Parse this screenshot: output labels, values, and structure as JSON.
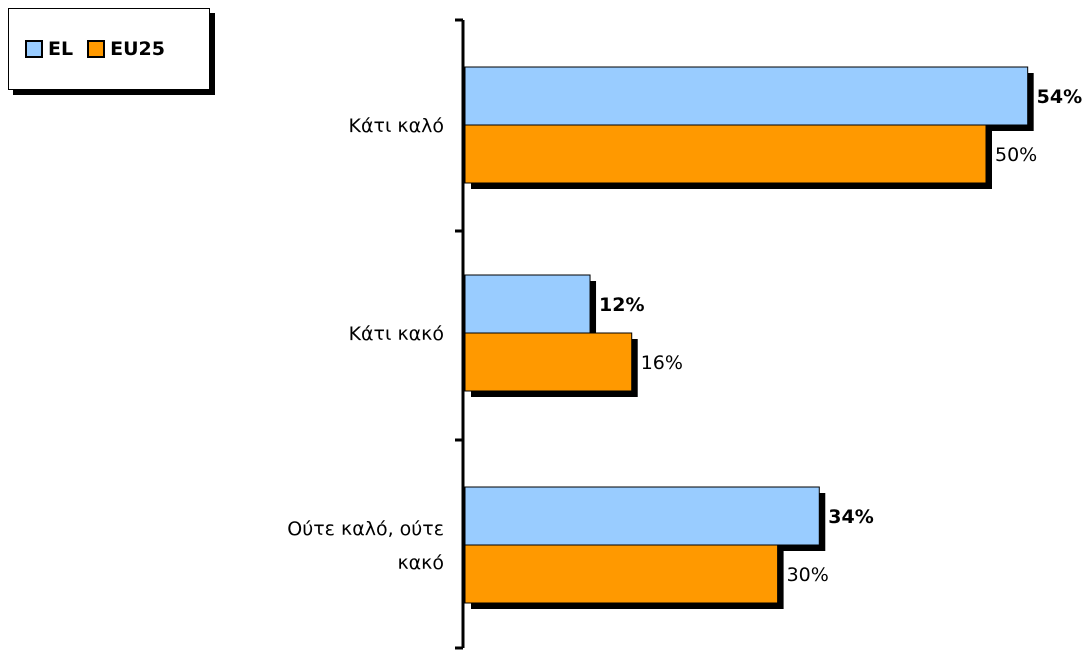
{
  "chart_data": {
    "type": "bar",
    "orientation": "horizontal",
    "categories": [
      "Κάτι καλό",
      "Κάτι κακό",
      "Ούτε καλό, ούτε κακό"
    ],
    "category_label_lines": [
      [
        "Κάτι καλό"
      ],
      [
        "Κάτι κακό"
      ],
      [
        "Ούτε καλό, ούτε",
        "κακό"
      ]
    ],
    "series": [
      {
        "name": "EL",
        "values": [
          54,
          12,
          34
        ],
        "labels": [
          "54%",
          "12%",
          "34%"
        ],
        "color": "#99ccff",
        "label_bold": true
      },
      {
        "name": "EU25",
        "values": [
          50,
          16,
          30
        ],
        "labels": [
          "50%",
          "16%",
          "30%"
        ],
        "color": "#ff9900",
        "label_bold": false
      }
    ],
    "xlim": [
      0,
      60
    ],
    "value_suffix": "%",
    "legend_position": "top-left",
    "grid": false,
    "title": "",
    "xlabel": "",
    "ylabel": ""
  },
  "legend": {
    "items": [
      {
        "label": "EL",
        "color": "#99ccff"
      },
      {
        "label": "EU25",
        "color": "#ff9900"
      }
    ]
  }
}
